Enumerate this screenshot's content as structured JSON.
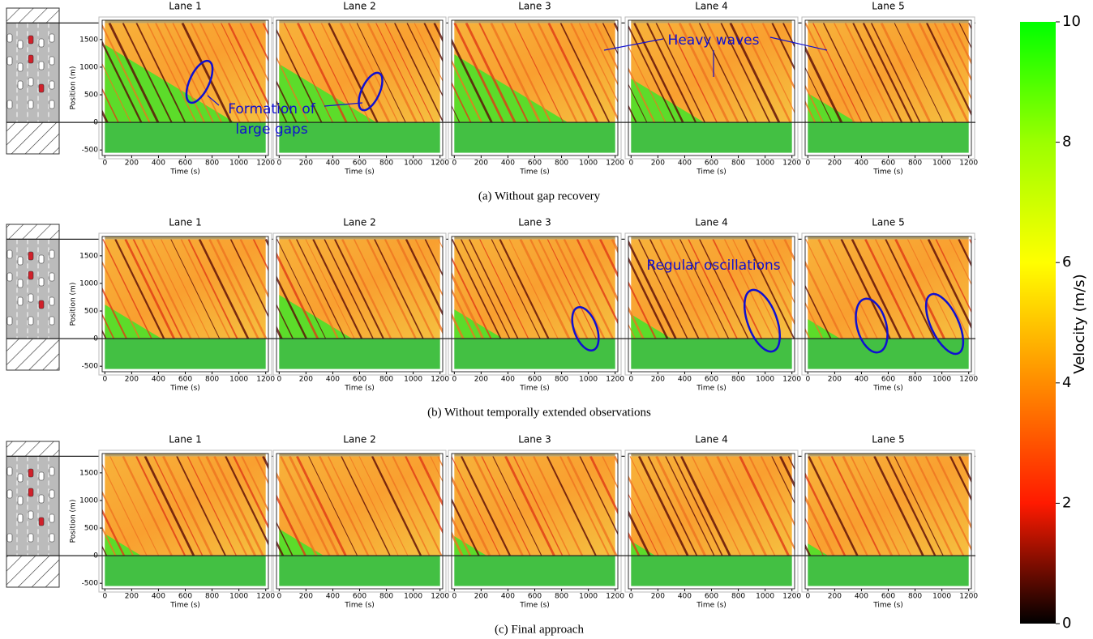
{
  "chart_data": {
    "type": "heatmap",
    "xlabel": "Time (s)",
    "ylabel": "Position (m)",
    "xlim": [
      -20,
      1220
    ],
    "ylim": [
      -600,
      1850
    ],
    "xticks": [
      0,
      200,
      400,
      600,
      800,
      1000,
      1200
    ],
    "yticks": [
      -500,
      0,
      500,
      1000,
      1500
    ],
    "rows": [
      {
        "caption": "(a) Without gap recovery",
        "titles": [
          "Lane 1",
          "Lane 2",
          "Lane 3",
          "Lane 4",
          "Lane 5"
        ]
      },
      {
        "caption": "(b) Without temporally extended observations",
        "titles": [
          "Lane 1",
          "Lane 2",
          "Lane 3",
          "Lane 4",
          "Lane 5"
        ]
      },
      {
        "caption": "(c) Final approach",
        "titles": [
          "Lane 1",
          "Lane 2",
          "Lane 3",
          "Lane 4",
          "Lane 5"
        ]
      }
    ],
    "annotations": [
      "Heavy waves",
      "Formation of",
      "large gaps",
      "Regular oscillations"
    ],
    "colorbar": {
      "label": "Velocity (m/s)",
      "lim": [
        0,
        10
      ],
      "ticks": [
        0,
        2,
        4,
        6,
        8,
        10
      ]
    }
  }
}
